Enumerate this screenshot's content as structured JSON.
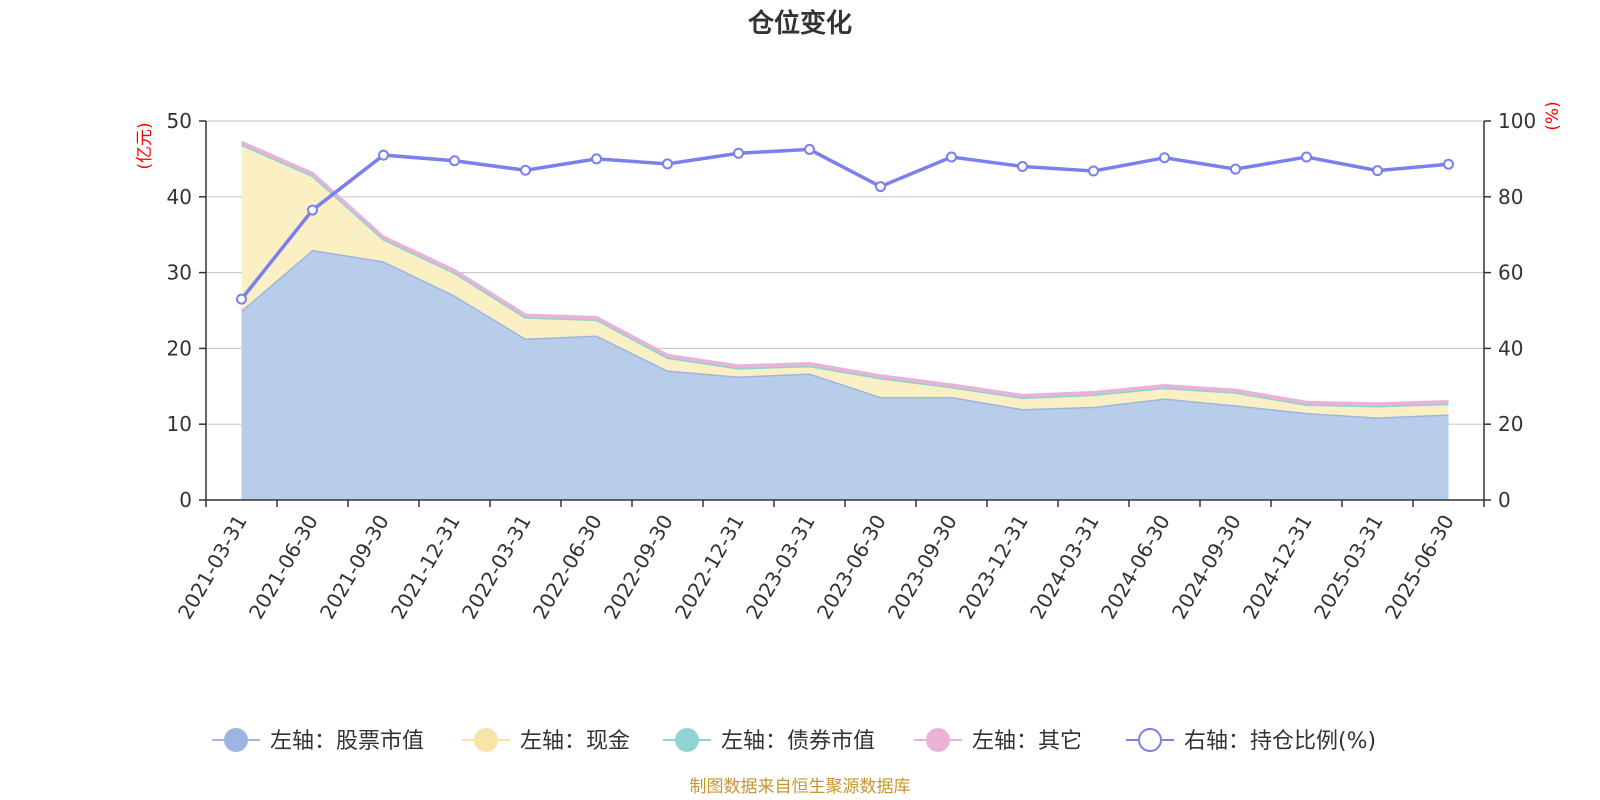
{
  "colors": {
    "stock": "#9db5e0",
    "stock_fill": "#b8cdea",
    "cash": "#f7e4a6",
    "cash_fill": "#fbf0c4",
    "bond": "#8fd3d3",
    "other": "#e9b3d8",
    "ratio": "#7b7ff0",
    "unit_label": "#ff0000",
    "source": "#c8962d"
  },
  "chart_data": {
    "type": "area",
    "title": "仓位变化",
    "left_axis_unit": "(亿元)",
    "right_axis_unit": "(%)",
    "ylim_left": [
      0,
      50
    ],
    "ylim_right": [
      0,
      100
    ],
    "yticks_left": [
      0,
      10,
      20,
      30,
      40,
      50
    ],
    "yticks_right": [
      0,
      20,
      40,
      60,
      80,
      100
    ],
    "grid": true,
    "legend_position": "bottom",
    "categories": [
      "2021-03-31",
      "2021-06-30",
      "2021-09-30",
      "2021-12-31",
      "2022-03-31",
      "2022-06-30",
      "2022-09-30",
      "2022-12-31",
      "2023-03-31",
      "2023-06-30",
      "2023-09-30",
      "2023-12-31",
      "2024-03-31",
      "2024-06-30",
      "2024-09-30",
      "2024-12-31",
      "2025-03-31",
      "2025-06-30"
    ],
    "series": [
      {
        "name": "左轴：股票市值",
        "axis": "left",
        "values": [
          25.0,
          33.0,
          31.5,
          27.0,
          21.3,
          21.7,
          17.1,
          16.3,
          16.7,
          13.6,
          13.6,
          12.0,
          12.3,
          13.4,
          12.5,
          11.5,
          10.9,
          11.3
        ]
      },
      {
        "name": "左轴：现金",
        "axis": "left",
        "values": [
          21.9,
          9.8,
          2.9,
          3.0,
          2.8,
          2.1,
          1.7,
          1.1,
          1.0,
          2.5,
          1.3,
          1.5,
          1.6,
          1.4,
          1.7,
          1.1,
          1.5,
          1.4
        ]
      },
      {
        "name": "左轴：债券市值",
        "axis": "left",
        "values": [
          0,
          0,
          0,
          0,
          0,
          0,
          0,
          0,
          0,
          0,
          0,
          0,
          0,
          0,
          0,
          0,
          0,
          0
        ]
      },
      {
        "name": "左轴：其它",
        "axis": "left",
        "values": [
          0.3,
          0.3,
          0.3,
          0.3,
          0.3,
          0.3,
          0.3,
          0.3,
          0.3,
          0.3,
          0.3,
          0.3,
          0.3,
          0.3,
          0.3,
          0.3,
          0.3,
          0.3
        ]
      },
      {
        "name": "右轴：持仓比例(%)",
        "axis": "right",
        "values": [
          53.0,
          76.5,
          91.0,
          89.5,
          87.0,
          90.0,
          88.7,
          91.5,
          92.5,
          82.7,
          90.5,
          88.0,
          86.8,
          90.3,
          87.3,
          90.5,
          86.9,
          88.6
        ]
      }
    ]
  },
  "source_note": "制图数据来自恒生聚源数据库"
}
